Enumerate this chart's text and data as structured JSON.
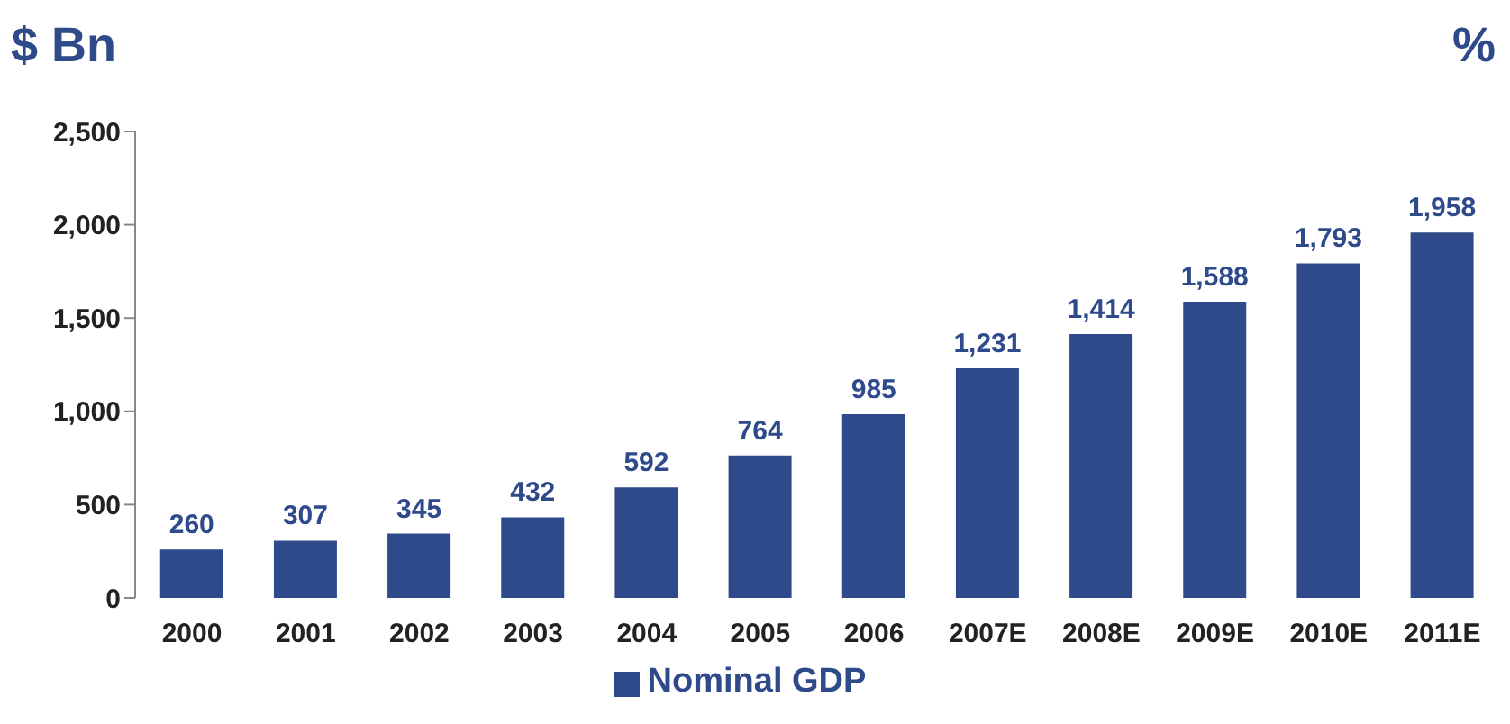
{
  "chart_data": {
    "type": "bar",
    "ylabel": "$ Bn",
    "y2label": "%",
    "categories": [
      "2000",
      "2001",
      "2002",
      "2003",
      "2004",
      "2005",
      "2006",
      "2007E",
      "2008E",
      "2009E",
      "2010E",
      "2011E"
    ],
    "series": [
      {
        "name": "Nominal GDP",
        "color": "#2f4a8a",
        "values": [
          260,
          307,
          345,
          432,
          592,
          764,
          985,
          1231,
          1414,
          1588,
          1793,
          1958
        ],
        "value_labels": [
          "260",
          "307",
          "345",
          "432",
          "592",
          "764",
          "985",
          "1,231",
          "1,414",
          "1,588",
          "1,793",
          "1,958"
        ]
      }
    ],
    "ylim": [
      0,
      2500
    ],
    "yticks": [
      0,
      500,
      {
        "value": 1000,
        "label": "1,000"
      },
      {
        "value": 1500,
        "label": "1,500"
      },
      {
        "value": 2000,
        "label": "2,000"
      },
      {
        "value": 2500,
        "label": "2,500"
      }
    ],
    "grid": false,
    "legend": "bottom"
  }
}
